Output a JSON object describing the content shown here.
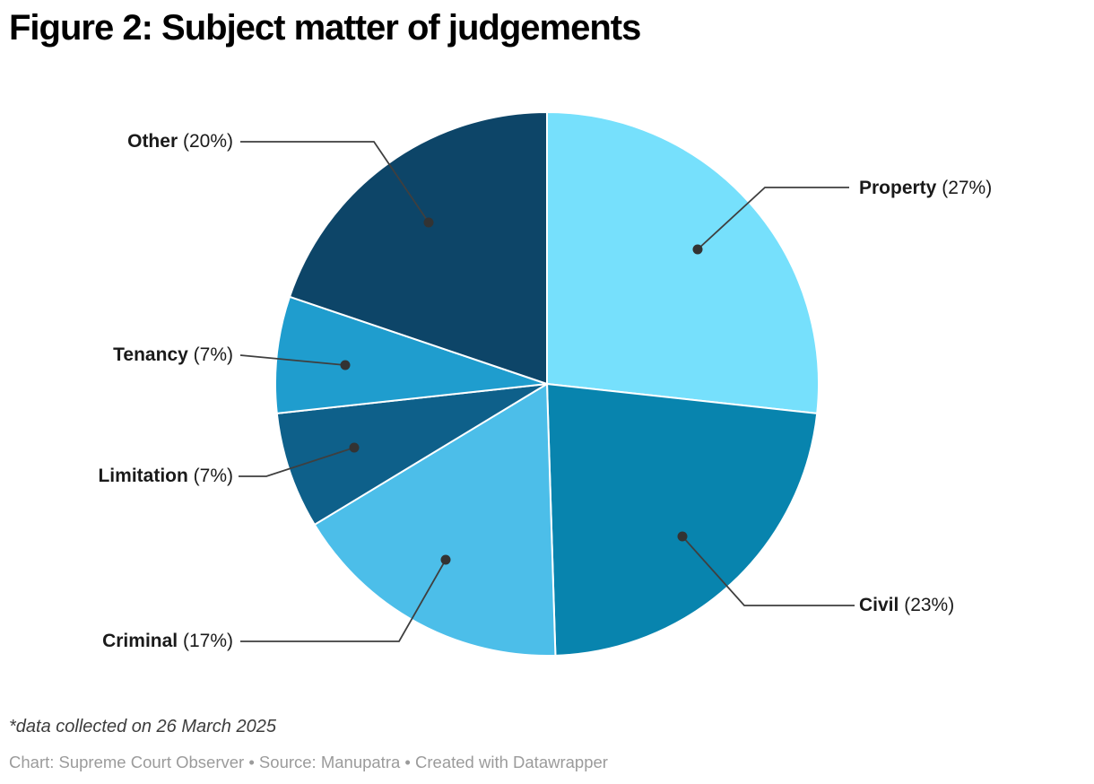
{
  "title": "Figure 2: Subject matter of judgements",
  "footnote": "*data collected on 26 March 2025",
  "attribution": "Chart: Supreme Court Observer • Source: Manupatra • Created with Datawrapper",
  "slices": [
    {
      "name": "Property",
      "pct_label": "(27%)"
    },
    {
      "name": "Civil",
      "pct_label": "(23%)"
    },
    {
      "name": "Criminal",
      "pct_label": "(17%)"
    },
    {
      "name": "Limitation",
      "pct_label": "(7%)"
    },
    {
      "name": "Tenancy",
      "pct_label": "(7%)"
    },
    {
      "name": "Other",
      "pct_label": "(20%)"
    }
  ],
  "chart_data": {
    "type": "pie",
    "title": "Figure 2: Subject matter of judgements",
    "categories": [
      "Property",
      "Civil",
      "Criminal",
      "Limitation",
      "Tenancy",
      "Other"
    ],
    "values": [
      27,
      23,
      17,
      7,
      7,
      20
    ],
    "unit": "%",
    "start_angle_deg": 0,
    "direction": "clockwise",
    "label_format": "Name (value%)",
    "legend_position": "outside-callouts",
    "colors": {
      "Property": "#76E0FC",
      "Civil": "#0884AE",
      "Criminal": "#4CBEE9",
      "Limitation": "#0E608A",
      "Tenancy": "#1F9DCE",
      "Other": "#0D4568"
    },
    "slice_separator_color": "#FFFFFF",
    "leader_line_color": "#3F3F3F",
    "leader_dot_color": "#333333"
  }
}
